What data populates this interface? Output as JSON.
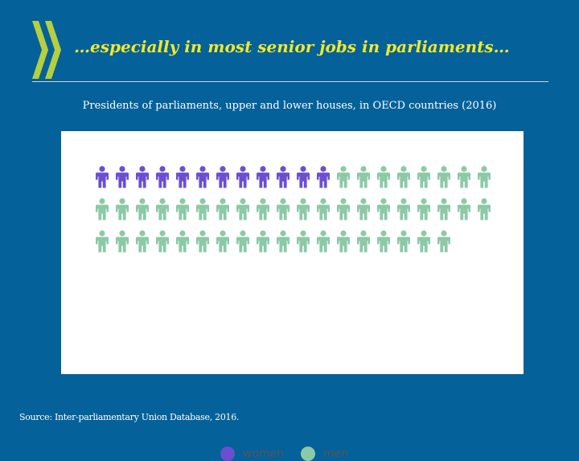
{
  "slide": {
    "title": "…especially in most senior jobs in parliaments…",
    "subtitle": "Presidents of parliaments, upper and lower houses, in OECD countries (2016)",
    "source": "Source: Inter-parliamentary Union Database, 2016."
  },
  "chart_data": {
    "type": "pictogram",
    "unit": "person",
    "per_row": 20,
    "series": [
      {
        "name": "women",
        "count": 12,
        "color": "#6a4fd0"
      },
      {
        "name": "men",
        "count": 46,
        "color": "#8cc9a6"
      }
    ],
    "legend": {
      "position": "bottom"
    }
  },
  "colors": {
    "background": "#04619a",
    "title": "#f2e82a",
    "logo": "#b5cf3e"
  }
}
